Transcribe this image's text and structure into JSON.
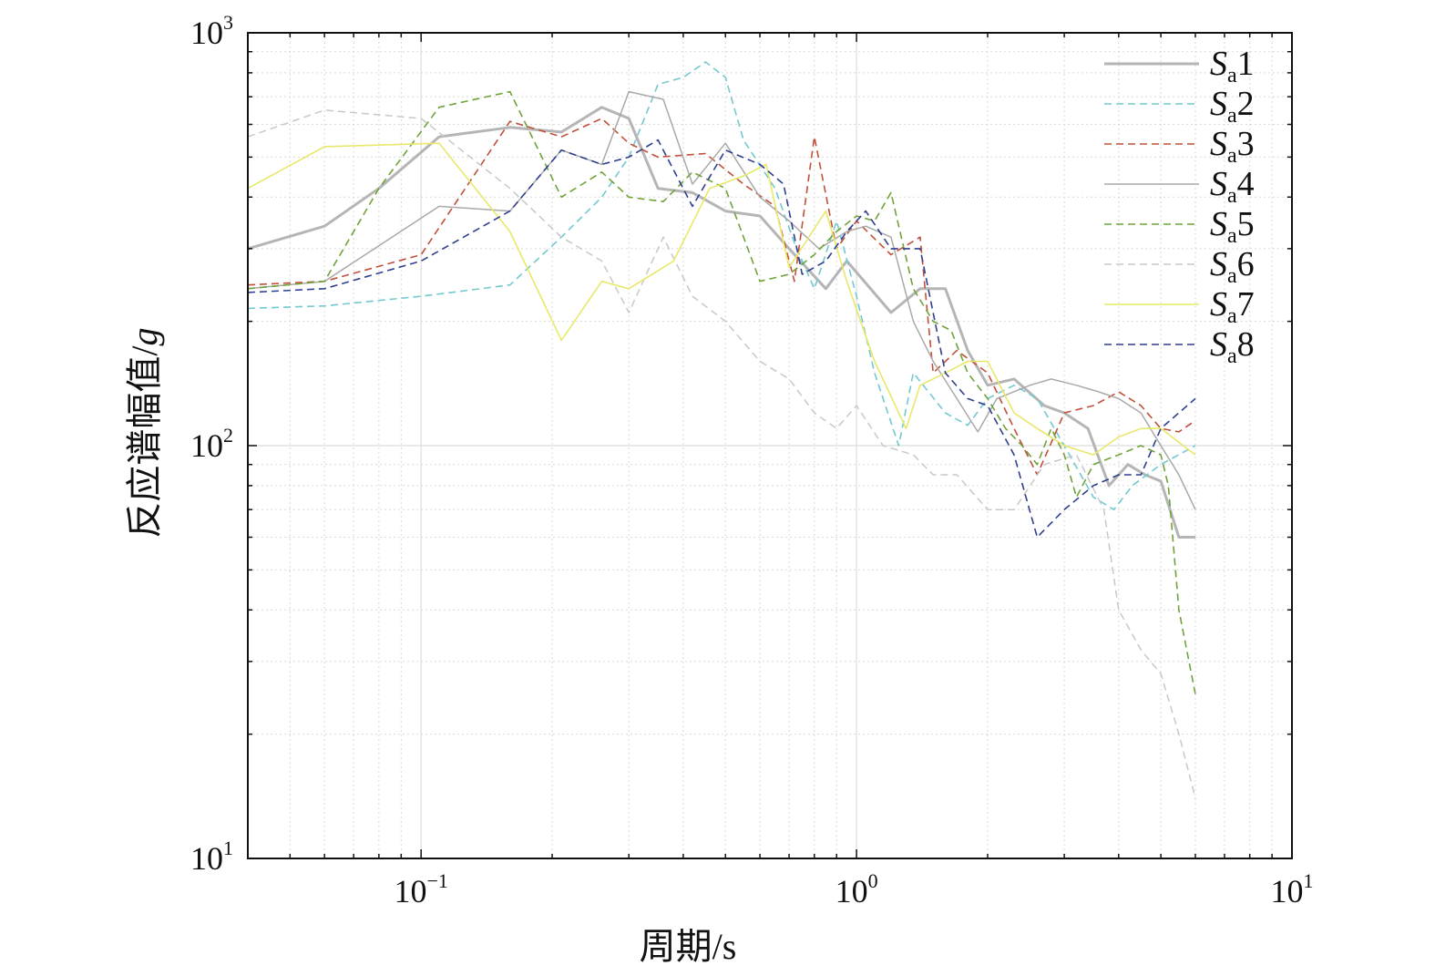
{
  "chart_data": {
    "type": "line",
    "xlabel": "周期/s",
    "ylabel_prefix": "反应谱幅值/",
    "ylabel_var": "g",
    "xscale": "log",
    "yscale": "log",
    "xlim": [
      0.04,
      10
    ],
    "ylim": [
      10,
      1000
    ],
    "grid": true,
    "legend_position": "top-right",
    "x_ticks": [
      {
        "value": 0.1,
        "base": "10",
        "exp": "−1"
      },
      {
        "value": 1,
        "base": "10",
        "exp": "0"
      },
      {
        "value": 10,
        "base": "10",
        "exp": "1"
      }
    ],
    "y_ticks": [
      {
        "value": 10,
        "base": "10",
        "exp": "1"
      },
      {
        "value": 100,
        "base": "10",
        "exp": "2"
      },
      {
        "value": 1000,
        "base": "10",
        "exp": "3"
      }
    ],
    "series": [
      {
        "label_italic": "S",
        "label_sub": "a",
        "label_num": "1",
        "color": "#b5b5b5",
        "width": 3,
        "dash": "",
        "points": [
          [
            0.04,
            300
          ],
          [
            0.06,
            340
          ],
          [
            0.08,
            420
          ],
          [
            0.11,
            560
          ],
          [
            0.16,
            590
          ],
          [
            0.21,
            575
          ],
          [
            0.26,
            660
          ],
          [
            0.3,
            620
          ],
          [
            0.35,
            420
          ],
          [
            0.42,
            410
          ],
          [
            0.5,
            370
          ],
          [
            0.6,
            360
          ],
          [
            0.7,
            300
          ],
          [
            0.85,
            240
          ],
          [
            0.95,
            280
          ],
          [
            1.2,
            210
          ],
          [
            1.4,
            240
          ],
          [
            1.6,
            240
          ],
          [
            1.8,
            170
          ],
          [
            2.0,
            140
          ],
          [
            2.3,
            145
          ],
          [
            2.7,
            125
          ],
          [
            3.0,
            120
          ],
          [
            3.4,
            110
          ],
          [
            3.8,
            80
          ],
          [
            4.2,
            90
          ],
          [
            4.6,
            85
          ],
          [
            5.0,
            82
          ],
          [
            5.5,
            60
          ],
          [
            6.0,
            60
          ]
        ]
      },
      {
        "label_italic": "S",
        "label_sub": "a",
        "label_num": "2",
        "color": "#72c9cf",
        "width": 1.6,
        "dash": "8,5",
        "points": [
          [
            0.04,
            215
          ],
          [
            0.06,
            218
          ],
          [
            0.1,
            230
          ],
          [
            0.16,
            245
          ],
          [
            0.21,
            320
          ],
          [
            0.26,
            400
          ],
          [
            0.3,
            500
          ],
          [
            0.35,
            750
          ],
          [
            0.4,
            780
          ],
          [
            0.45,
            850
          ],
          [
            0.5,
            780
          ],
          [
            0.55,
            550
          ],
          [
            0.65,
            420
          ],
          [
            0.72,
            310
          ],
          [
            0.8,
            240
          ],
          [
            0.9,
            350
          ],
          [
            1.0,
            230
          ],
          [
            1.1,
            150
          ],
          [
            1.25,
            100
          ],
          [
            1.35,
            150
          ],
          [
            1.6,
            120
          ],
          [
            1.8,
            112
          ],
          [
            2.0,
            130
          ],
          [
            2.3,
            140
          ],
          [
            2.6,
            130
          ],
          [
            3.0,
            100
          ],
          [
            3.5,
            75
          ],
          [
            3.9,
            70
          ],
          [
            4.3,
            80
          ],
          [
            5.0,
            90
          ],
          [
            6.0,
            100
          ]
        ]
      },
      {
        "label_italic": "S",
        "label_sub": "a",
        "label_num": "3",
        "color": "#c0503a",
        "width": 1.6,
        "dash": "8,5",
        "points": [
          [
            0.04,
            245
          ],
          [
            0.06,
            250
          ],
          [
            0.1,
            290
          ],
          [
            0.16,
            610
          ],
          [
            0.21,
            560
          ],
          [
            0.26,
            620
          ],
          [
            0.3,
            540
          ],
          [
            0.35,
            500
          ],
          [
            0.45,
            510
          ],
          [
            0.55,
            430
          ],
          [
            0.65,
            380
          ],
          [
            0.72,
            250
          ],
          [
            0.8,
            560
          ],
          [
            0.9,
            300
          ],
          [
            1.0,
            350
          ],
          [
            1.2,
            290
          ],
          [
            1.4,
            320
          ],
          [
            1.5,
            150
          ],
          [
            1.7,
            170
          ],
          [
            2.0,
            150
          ],
          [
            2.3,
            110
          ],
          [
            2.6,
            85
          ],
          [
            3.0,
            120
          ],
          [
            3.5,
            125
          ],
          [
            4.0,
            135
          ],
          [
            4.5,
            125
          ],
          [
            5.0,
            110
          ],
          [
            5.5,
            108
          ],
          [
            6.0,
            115
          ]
        ]
      },
      {
        "label_italic": "S",
        "label_sub": "a",
        "label_num": "4",
        "color": "#a9a9a9",
        "width": 1.5,
        "dash": "",
        "points": [
          [
            0.04,
            240
          ],
          [
            0.06,
            250
          ],
          [
            0.11,
            380
          ],
          [
            0.16,
            370
          ],
          [
            0.21,
            520
          ],
          [
            0.26,
            480
          ],
          [
            0.3,
            720
          ],
          [
            0.36,
            690
          ],
          [
            0.42,
            430
          ],
          [
            0.5,
            540
          ],
          [
            0.6,
            400
          ],
          [
            0.7,
            350
          ],
          [
            0.82,
            300
          ],
          [
            0.95,
            330
          ],
          [
            1.05,
            340
          ],
          [
            1.2,
            320
          ],
          [
            1.35,
            200
          ],
          [
            1.5,
            160
          ],
          [
            1.7,
            130
          ],
          [
            1.9,
            108
          ],
          [
            2.1,
            130
          ],
          [
            2.5,
            140
          ],
          [
            2.8,
            145
          ],
          [
            3.2,
            140
          ],
          [
            3.6,
            135
          ],
          [
            4.0,
            130
          ],
          [
            4.5,
            120
          ],
          [
            5.0,
            100
          ],
          [
            5.5,
            85
          ],
          [
            6.0,
            70
          ]
        ]
      },
      {
        "label_italic": "S",
        "label_sub": "a",
        "label_num": "5",
        "color": "#6fa33a",
        "width": 1.6,
        "dash": "8,5",
        "points": [
          [
            0.04,
            240
          ],
          [
            0.06,
            250
          ],
          [
            0.08,
            420
          ],
          [
            0.11,
            660
          ],
          [
            0.16,
            720
          ],
          [
            0.21,
            400
          ],
          [
            0.26,
            460
          ],
          [
            0.3,
            400
          ],
          [
            0.36,
            390
          ],
          [
            0.42,
            460
          ],
          [
            0.5,
            420
          ],
          [
            0.6,
            250
          ],
          [
            0.7,
            260
          ],
          [
            0.8,
            290
          ],
          [
            0.9,
            330
          ],
          [
            1.0,
            360
          ],
          [
            1.1,
            350
          ],
          [
            1.2,
            410
          ],
          [
            1.35,
            240
          ],
          [
            1.5,
            200
          ],
          [
            1.65,
            190
          ],
          [
            1.8,
            150
          ],
          [
            2.0,
            130
          ],
          [
            2.2,
            110
          ],
          [
            2.4,
            100
          ],
          [
            2.6,
            90
          ],
          [
            2.8,
            110
          ],
          [
            3.0,
            95
          ],
          [
            3.2,
            75
          ],
          [
            3.5,
            90
          ],
          [
            4.0,
            95
          ],
          [
            4.5,
            100
          ],
          [
            5.0,
            95
          ],
          [
            5.2,
            80
          ],
          [
            5.5,
            40
          ],
          [
            6.0,
            25
          ]
        ]
      },
      {
        "label_italic": "S",
        "label_sub": "a",
        "label_num": "6",
        "color": "#c8c8c8",
        "width": 1.5,
        "dash": "8,5",
        "points": [
          [
            0.04,
            560
          ],
          [
            0.06,
            650
          ],
          [
            0.1,
            620
          ],
          [
            0.16,
            420
          ],
          [
            0.21,
            320
          ],
          [
            0.26,
            280
          ],
          [
            0.3,
            210
          ],
          [
            0.36,
            320
          ],
          [
            0.42,
            230
          ],
          [
            0.5,
            200
          ],
          [
            0.6,
            160
          ],
          [
            0.7,
            145
          ],
          [
            0.8,
            120
          ],
          [
            0.9,
            110
          ],
          [
            1.0,
            125
          ],
          [
            1.15,
            100
          ],
          [
            1.35,
            95
          ],
          [
            1.5,
            85
          ],
          [
            1.7,
            85
          ],
          [
            2.0,
            70
          ],
          [
            2.3,
            70
          ],
          [
            2.7,
            90
          ],
          [
            3.2,
            95
          ],
          [
            3.7,
            70
          ],
          [
            4.0,
            40
          ],
          [
            4.5,
            32
          ],
          [
            5.0,
            28
          ],
          [
            5.5,
            20
          ],
          [
            6.0,
            14
          ]
        ]
      },
      {
        "label_italic": "S",
        "label_sub": "a",
        "label_num": "7",
        "color": "#e8e86a",
        "width": 1.6,
        "dash": "",
        "points": [
          [
            0.04,
            420
          ],
          [
            0.06,
            530
          ],
          [
            0.11,
            540
          ],
          [
            0.16,
            330
          ],
          [
            0.21,
            180
          ],
          [
            0.26,
            250
          ],
          [
            0.3,
            240
          ],
          [
            0.38,
            280
          ],
          [
            0.46,
            420
          ],
          [
            0.55,
            450
          ],
          [
            0.62,
            480
          ],
          [
            0.7,
            270
          ],
          [
            0.85,
            370
          ],
          [
            0.95,
            250
          ],
          [
            1.1,
            160
          ],
          [
            1.3,
            110
          ],
          [
            1.4,
            140
          ],
          [
            1.6,
            150
          ],
          [
            1.8,
            160
          ],
          [
            2.0,
            160
          ],
          [
            2.3,
            120
          ],
          [
            2.6,
            110
          ],
          [
            3.0,
            100
          ],
          [
            3.5,
            95
          ],
          [
            4.0,
            105
          ],
          [
            4.5,
            110
          ],
          [
            5.0,
            110
          ],
          [
            6.0,
            95
          ]
        ]
      },
      {
        "label_italic": "S",
        "label_sub": "a",
        "label_num": "8",
        "color": "#2f3f8f",
        "width": 1.6,
        "dash": "8,5",
        "points": [
          [
            0.04,
            235
          ],
          [
            0.06,
            240
          ],
          [
            0.1,
            280
          ],
          [
            0.16,
            370
          ],
          [
            0.21,
            520
          ],
          [
            0.26,
            480
          ],
          [
            0.3,
            500
          ],
          [
            0.35,
            550
          ],
          [
            0.42,
            380
          ],
          [
            0.5,
            520
          ],
          [
            0.6,
            480
          ],
          [
            0.68,
            430
          ],
          [
            0.75,
            260
          ],
          [
            0.85,
            280
          ],
          [
            0.95,
            330
          ],
          [
            1.05,
            370
          ],
          [
            1.2,
            300
          ],
          [
            1.4,
            300
          ],
          [
            1.6,
            150
          ],
          [
            1.8,
            130
          ],
          [
            2.0,
            125
          ],
          [
            2.3,
            95
          ],
          [
            2.6,
            60
          ],
          [
            3.0,
            70
          ],
          [
            3.5,
            80
          ],
          [
            4.0,
            85
          ],
          [
            4.5,
            85
          ],
          [
            5.0,
            110
          ],
          [
            6.0,
            130
          ]
        ]
      }
    ]
  }
}
